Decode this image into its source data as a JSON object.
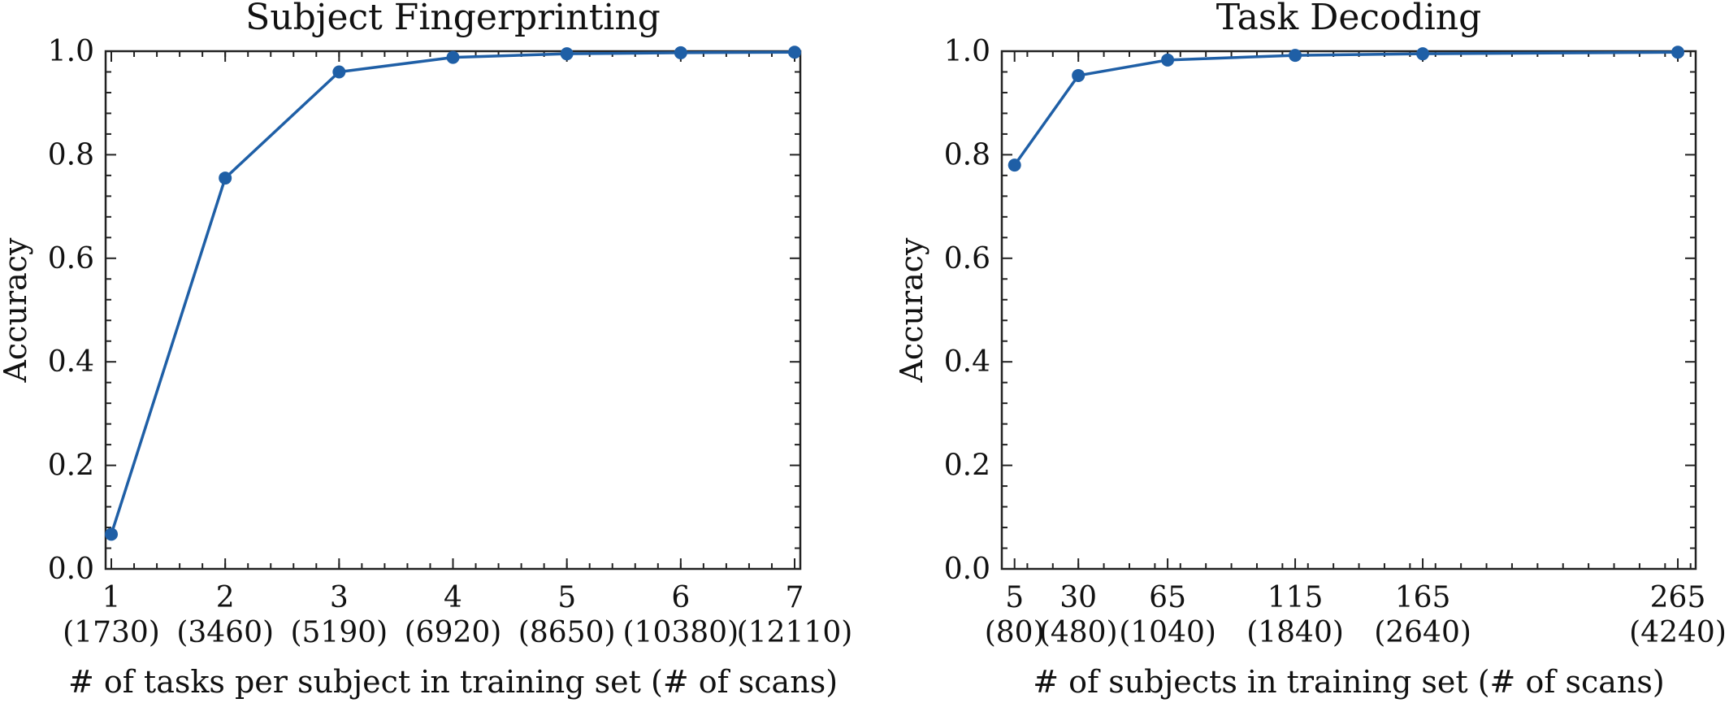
{
  "chart_data": [
    {
      "type": "line",
      "title": "Subject Fingerprinting",
      "ylabel": "Accuracy",
      "xlabel": "# of tasks per subject in training set (# of scans)",
      "ylim": [
        0,
        1.0
      ],
      "xlim": [
        0.95,
        7.05
      ],
      "yticks": [
        "0.0",
        "0.2",
        "0.4",
        "0.6",
        "0.8",
        "1.0"
      ],
      "x": [
        1,
        2,
        3,
        4,
        5,
        6,
        7
      ],
      "xtick_labels": [
        "1",
        "2",
        "3",
        "4",
        "5",
        "6",
        "7"
      ],
      "xtick_sublabels": [
        "(1730)",
        "(3460)",
        "(5190)",
        "(6920)",
        "(8650)",
        "(10380)",
        "(12110)"
      ],
      "values": [
        0.067,
        0.755,
        0.96,
        0.988,
        0.995,
        0.997,
        0.998
      ],
      "color": "#1f5fa6",
      "grid": false
    },
    {
      "type": "line",
      "title": "Task Decoding",
      "ylabel": "Accuracy",
      "xlabel": "# of subjects in training set (# of scans)",
      "ylim": [
        0,
        1.0
      ],
      "xlim": [
        0,
        272
      ],
      "yticks": [
        "0.0",
        "0.2",
        "0.4",
        "0.6",
        "0.8",
        "1.0"
      ],
      "x": [
        5,
        30,
        65,
        115,
        165,
        265
      ],
      "xtick_labels": [
        "5",
        "30",
        "65",
        "115",
        "165",
        "265"
      ],
      "xtick_sublabels": [
        "(80)",
        "(480)",
        "(1040)",
        "(1840)",
        "(2640)",
        "(4240)"
      ],
      "values": [
        0.78,
        0.953,
        0.983,
        0.992,
        0.995,
        0.998
      ],
      "color": "#1f5fa6",
      "grid": false
    }
  ]
}
